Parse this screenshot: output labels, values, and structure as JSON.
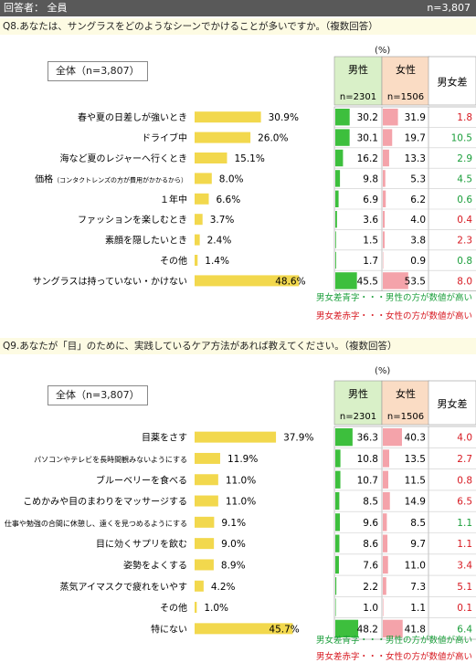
{
  "header": {
    "respondent": "回答者： 全員",
    "n": "n=3,807"
  },
  "legend_notes": {
    "blue": "男女差青字・・・男性の方が数値が高い",
    "red": "男女差赤字・・・女性の方が数値が高い"
  },
  "colors": {
    "bar": "#f2d84d",
    "male": "#3dbf3d",
    "female": "#f4a3aa",
    "male_head": "#d9f0c8",
    "female_head": "#fadcc4",
    "blue_text": "#1a9e3a",
    "red_text": "#d71921"
  },
  "chart_data": [
    {
      "type": "bar",
      "title": "Q8.あなたは、サングラスをどのようなシーンでかけることが多いですか。（複数回答）",
      "unit": "(%)",
      "total_label": "全体（n=3,807）",
      "headers": {
        "male": "男性",
        "male_n": "n=2301",
        "female": "女性",
        "female_n": "n=1506",
        "diff": "男女差"
      },
      "categories": [
        "春や夏の日差しが強いとき",
        "ドライブ中",
        "海など夏のレジャーへ行くとき",
        "価格",
        "１年中",
        "ファッションを楽しむとき",
        "素顔を隠したいとき",
        "その他",
        "サングラスは持っていない・かけない"
      ],
      "category_notes": [
        "",
        "",
        "",
        "（コンタクトレンズの方が費用がかかるから）",
        "",
        "",
        "",
        "",
        ""
      ],
      "series": [
        {
          "name": "全体",
          "values": [
            30.9,
            26.0,
            15.1,
            8.0,
            6.6,
            3.7,
            2.4,
            1.4,
            48.6
          ]
        },
        {
          "name": "男性",
          "values": [
            30.2,
            30.1,
            16.2,
            9.8,
            6.9,
            3.6,
            1.5,
            1.7,
            45.5
          ]
        },
        {
          "name": "女性",
          "values": [
            31.9,
            19.7,
            13.3,
            5.3,
            6.2,
            4.0,
            3.8,
            0.9,
            53.5
          ]
        },
        {
          "name": "男女差",
          "values": [
            1.8,
            10.5,
            2.9,
            4.5,
            0.6,
            0.4,
            2.3,
            0.8,
            8.0
          ]
        }
      ],
      "total_labels": [
        "30.9%",
        "26.0%",
        "15.1%",
        "8.0%",
        "6.6%",
        "3.7%",
        "2.4%",
        "1.4%",
        "48.6%"
      ],
      "male_labels": [
        "30.2",
        "30.1",
        "16.2",
        "9.8",
        "6.9",
        "3.6",
        "1.5",
        "1.7",
        "45.5"
      ],
      "female_labels": [
        "31.9",
        "19.7",
        "13.3",
        "5.3",
        "6.2",
        "4.0",
        "3.8",
        "0.9",
        "53.5"
      ],
      "diff_labels": [
        "1.8",
        "10.5",
        "2.9",
        "4.5",
        "0.6",
        "0.4",
        "2.3",
        "0.8",
        "8.0"
      ],
      "diff_higher": [
        "female",
        "male",
        "male",
        "male",
        "male",
        "female",
        "female",
        "male",
        "female"
      ]
    },
    {
      "type": "bar",
      "title": "Q9.あなたが「目」のために、実践しているケア方法があれば教えてください。（複数回答）",
      "unit": "(%)",
      "total_label": "全体（n=3,807）",
      "headers": {
        "male": "男性",
        "male_n": "n=2301",
        "female": "女性",
        "female_n": "n=1506",
        "diff": "男女差"
      },
      "categories": [
        "目薬をさす",
        "パソコンやテレビを長時間観みないようにする",
        "ブルーベリーを食べる",
        "こめかみや目のまわりをマッサージする",
        "仕事や勉強の合間に休憩し、遠くを見つめるようにする",
        "目に効くサプリを飲む",
        "姿勢をよくする",
        "蒸気アイマスクで疲れをいやす",
        "その他",
        "特にない"
      ],
      "category_notes": [
        "",
        "",
        "",
        "",
        "",
        "",
        "",
        "",
        "",
        ""
      ],
      "series": [
        {
          "name": "全体",
          "values": [
            37.9,
            11.9,
            11.0,
            11.0,
            9.1,
            9.0,
            8.9,
            4.2,
            1.0,
            45.7
          ]
        },
        {
          "name": "男性",
          "values": [
            36.3,
            10.8,
            10.7,
            8.5,
            9.6,
            8.6,
            7.6,
            2.2,
            1.0,
            48.2
          ]
        },
        {
          "name": "女性",
          "values": [
            40.3,
            13.5,
            11.5,
            14.9,
            8.5,
            9.7,
            11.0,
            7.3,
            1.1,
            41.8
          ]
        },
        {
          "name": "男女差",
          "values": [
            4.0,
            2.7,
            0.8,
            6.5,
            1.1,
            1.1,
            3.4,
            5.1,
            0.1,
            6.4
          ]
        }
      ],
      "total_labels": [
        "37.9%",
        "11.9%",
        "11.0%",
        "11.0%",
        "9.1%",
        "9.0%",
        "8.9%",
        "4.2%",
        "1.0%",
        "45.7%"
      ],
      "male_labels": [
        "36.3",
        "10.8",
        "10.7",
        "8.5",
        "9.6",
        "8.6",
        "7.6",
        "2.2",
        "1.0",
        "48.2"
      ],
      "female_labels": [
        "40.3",
        "13.5",
        "11.5",
        "14.9",
        "8.5",
        "9.7",
        "11.0",
        "7.3",
        "1.1",
        "41.8"
      ],
      "diff_labels": [
        "4.0",
        "2.7",
        "0.8",
        "6.5",
        "1.1",
        "1.1",
        "3.4",
        "5.1",
        "0.1",
        "6.4"
      ],
      "diff_higher": [
        "female",
        "female",
        "female",
        "female",
        "male",
        "female",
        "female",
        "female",
        "female",
        "male"
      ]
    }
  ]
}
